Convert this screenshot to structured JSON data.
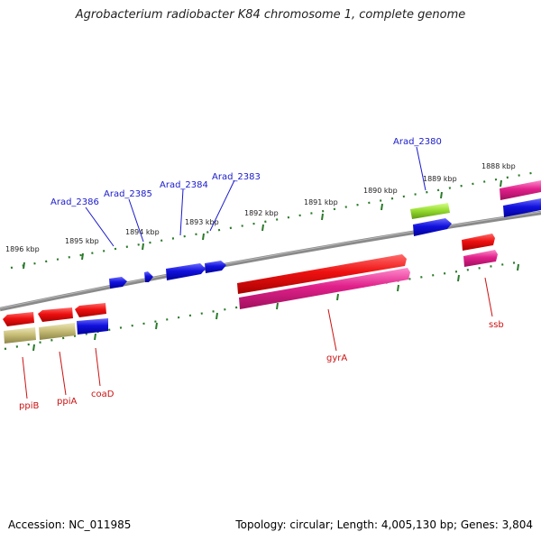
{
  "title": "Agrobacterium radiobacter K84 chromosome 1, complete genome",
  "accession": "Accession: NC_011985",
  "summary": "Topology: circular; Length: 4,005,130 bp; Genes: 3,804",
  "colors": {
    "backbone": "#808080",
    "tick": "#2a7a2a",
    "gene_red": "#ee1111",
    "gene_blue": "#1111dd",
    "gene_magenta": "#e0208a",
    "gene_khaki": "#c8be78",
    "gene_green": "#99dd33",
    "label_blue": "#1a1acc",
    "label_red": "#cc1111"
  },
  "kbp_labels": [
    "1896 kbp",
    "1895 kbp",
    "1894 kbp",
    "1893 kbp",
    "1892 kbp",
    "1891 kbp",
    "1890 kbp",
    "1889 kbp",
    "1888 kbp"
  ],
  "gene_labels": {
    "upper": [
      "Arad_2386",
      "Arad_2385",
      "Arad_2384",
      "Arad_2383",
      "Arad_2380"
    ],
    "lower": [
      "ppiB",
      "ppiA",
      "coaD",
      "gyrA",
      "ssb"
    ]
  }
}
